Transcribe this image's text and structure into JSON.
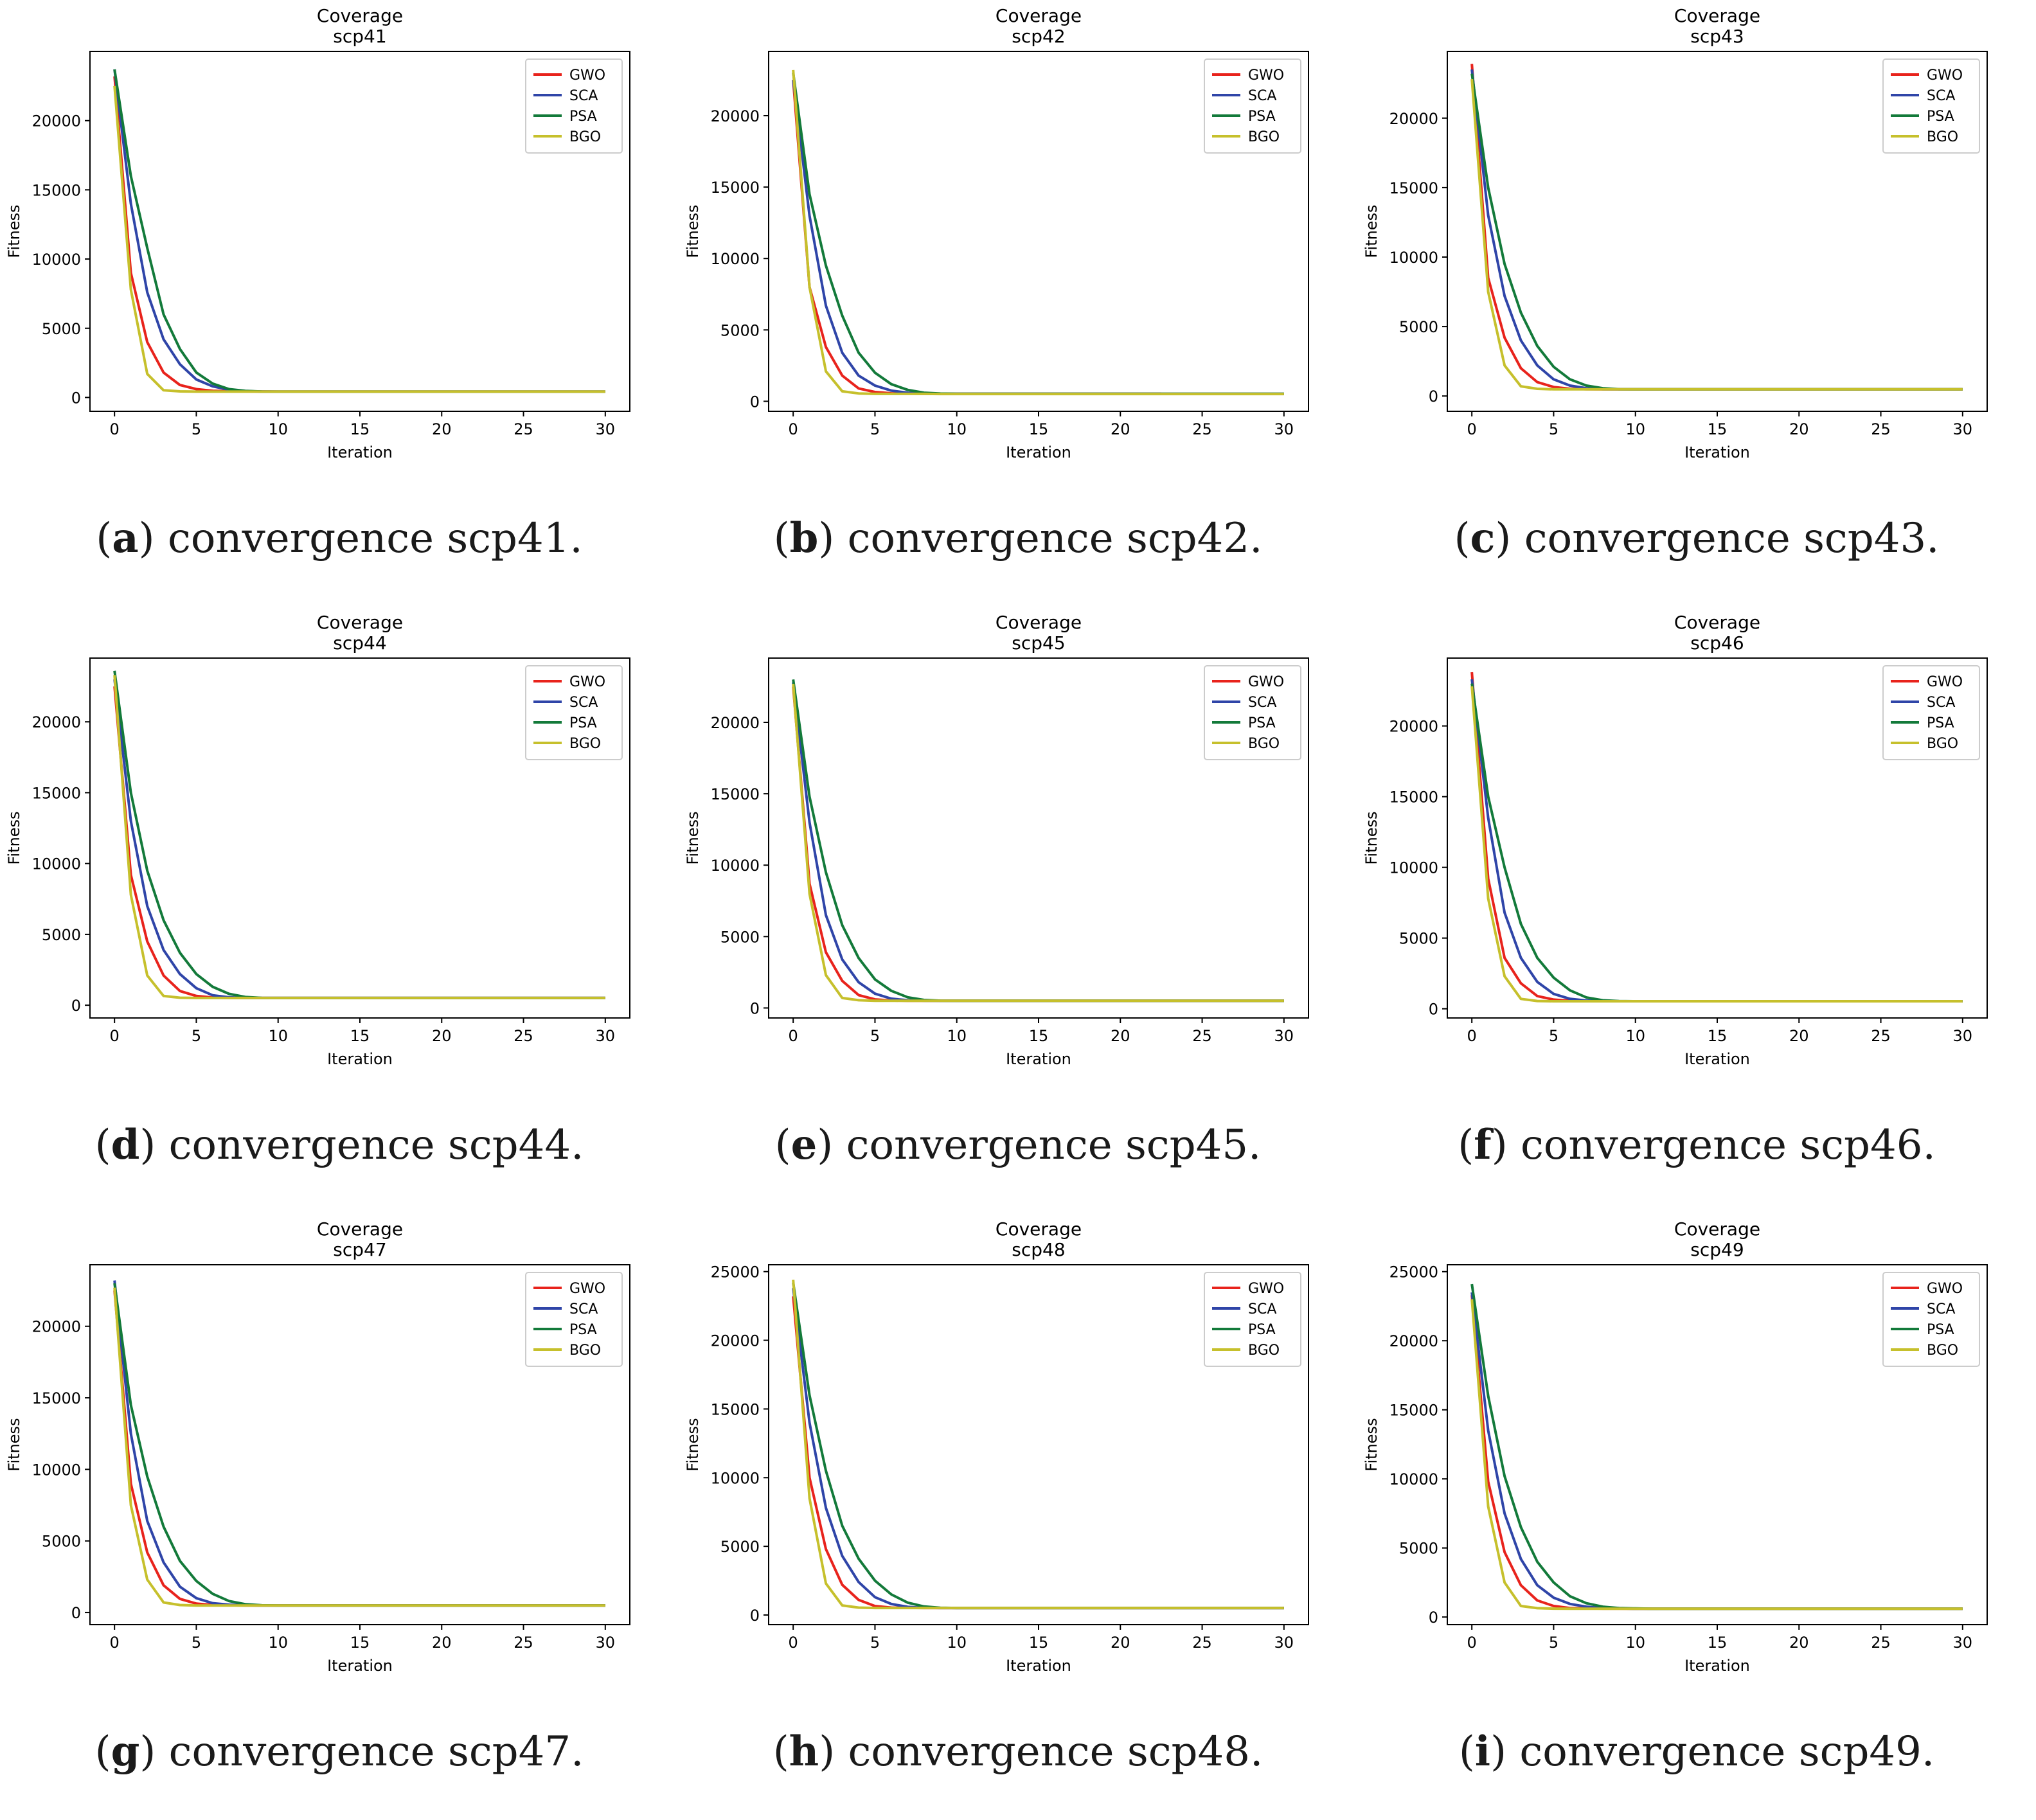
{
  "colors": {
    "GWO": "#e8231c",
    "SCA": "#2f45a8",
    "PSA": "#137a3a",
    "BGO": "#c6c02c"
  },
  "legend_labels": [
    "GWO",
    "SCA",
    "PSA",
    "BGO"
  ],
  "panels": [
    {
      "id": "a",
      "caption_letter": "a",
      "caption_text": "convergence scp41.",
      "chart_data": {
        "type": "line",
        "title": "Coverage",
        "subtitle": "scp41",
        "xlabel": "Iteration",
        "ylabel": "Fitness",
        "xlim": [
          -1.5,
          31.5
        ],
        "ylim": [
          -1000,
          25000
        ],
        "xticks": [
          0,
          5,
          10,
          15,
          20,
          25,
          30
        ],
        "yticks": [
          0,
          5000,
          10000,
          15000,
          20000
        ],
        "legend_position": "top-right",
        "series": [
          {
            "name": "GWO",
            "x_end": 30,
            "values": [
              23200,
              9000,
              4000,
              1800,
              900,
              600,
              480,
              450,
              440,
              430,
              420,
              420
            ]
          },
          {
            "name": "SCA",
            "x_end": 30,
            "values": [
              23700,
              14000,
              7600,
              4200,
              2400,
              1300,
              800,
              560,
              460,
              430,
              420,
              420
            ]
          },
          {
            "name": "PSA",
            "x_end": 30,
            "values": [
              23700,
              16000,
              10800,
              6000,
              3500,
              1800,
              1000,
              600,
              470,
              430,
              420,
              420
            ]
          },
          {
            "name": "BGO",
            "x_end": 30,
            "values": [
              22500,
              7800,
              1700,
              520,
              440,
              420,
              420,
              420,
              420,
              420,
              420,
              420
            ]
          }
        ]
      }
    },
    {
      "id": "b",
      "caption_letter": "b",
      "caption_text": "convergence scp42.",
      "chart_data": {
        "type": "line",
        "title": "Coverage",
        "subtitle": "scp42",
        "xlabel": "Iteration",
        "ylabel": "Fitness",
        "xlim": [
          -1.5,
          31.5
        ],
        "ylim": [
          -700,
          24500
        ],
        "xticks": [
          0,
          5,
          10,
          15,
          20,
          25,
          30
        ],
        "yticks": [
          0,
          5000,
          10000,
          15000,
          20000
        ],
        "legend_position": "top-right",
        "series": [
          {
            "name": "GWO",
            "x_end": 22.5,
            "values": [
              22500,
              8000,
              3800,
              1800,
              900,
              650,
              560,
              540,
              530,
              530,
              530,
              530
            ]
          },
          {
            "name": "SCA",
            "x_end": 30,
            "values": [
              22500,
              13000,
              6700,
              3400,
              1800,
              1100,
              750,
              600,
              540,
              530,
              530,
              530
            ]
          },
          {
            "name": "PSA",
            "x_end": 30,
            "values": [
              23000,
              14500,
              9500,
              6000,
              3400,
              2000,
              1200,
              800,
              600,
              540,
              530,
              530
            ]
          },
          {
            "name": "BGO",
            "x_end": 30,
            "values": [
              23200,
              8000,
              2100,
              700,
              550,
              520,
              520,
              520,
              520,
              510,
              510,
              510
            ]
          }
        ]
      }
    },
    {
      "id": "c",
      "caption_letter": "c",
      "caption_text": "convergence scp43.",
      "chart_data": {
        "type": "line",
        "title": "Coverage",
        "subtitle": "scp43",
        "xlabel": "Iteration",
        "ylabel": "Fitness",
        "xlim": [
          -1.5,
          31.5
        ],
        "ylim": [
          -1100,
          24800
        ],
        "xticks": [
          0,
          5,
          10,
          15,
          20,
          25,
          30
        ],
        "yticks": [
          0,
          5000,
          10000,
          15000,
          20000
        ],
        "legend_position": "top-right",
        "series": [
          {
            "name": "GWO",
            "x_end": 30,
            "values": [
              23900,
              8500,
              4200,
              2000,
              1000,
              650,
              520,
              490,
              480,
              480,
              480,
              480
            ]
          },
          {
            "name": "SCA",
            "x_end": 30,
            "values": [
              23500,
              13000,
              7200,
              4000,
              2200,
              1200,
              750,
              560,
              490,
              480,
              480,
              480
            ]
          },
          {
            "name": "PSA",
            "x_end": 30,
            "values": [
              23200,
              15000,
              9500,
              6000,
              3600,
              2100,
              1200,
              750,
              560,
              490,
              480,
              480
            ]
          },
          {
            "name": "BGO",
            "x_end": 30,
            "values": [
              22800,
              7500,
              2200,
              700,
              520,
              480,
              480,
              480,
              480,
              480,
              480,
              480
            ]
          }
        ]
      }
    },
    {
      "id": "d",
      "caption_letter": "d",
      "caption_text": "convergence scp44.",
      "chart_data": {
        "type": "line",
        "title": "Coverage",
        "subtitle": "scp44",
        "xlabel": "Iteration",
        "ylabel": "Fitness",
        "xlim": [
          -1.5,
          31.5
        ],
        "ylim": [
          -900,
          24500
        ],
        "xticks": [
          0,
          5,
          10,
          15,
          20,
          25,
          30
        ],
        "yticks": [
          0,
          5000,
          10000,
          15000,
          20000
        ],
        "legend_position": "top-right",
        "series": [
          {
            "name": "GWO",
            "x_end": 30,
            "values": [
              22500,
              9200,
              4500,
              2100,
              1000,
              650,
              540,
              520,
              510,
              510,
              510,
              510
            ]
          },
          {
            "name": "SCA",
            "x_end": 30,
            "values": [
              23000,
              13000,
              7000,
              3900,
              2200,
              1200,
              700,
              560,
              520,
              510,
              510,
              510
            ]
          },
          {
            "name": "PSA",
            "x_end": 30,
            "values": [
              23600,
              15000,
              9500,
              6000,
              3700,
              2200,
              1300,
              800,
              580,
              520,
              510,
              510
            ]
          },
          {
            "name": "BGO",
            "x_end": 30,
            "values": [
              23300,
              7800,
              2100,
              650,
              530,
              510,
              510,
              510,
              510,
              510,
              510,
              510
            ]
          }
        ]
      }
    },
    {
      "id": "e",
      "caption_letter": "e",
      "caption_text": "convergence scp45.",
      "chart_data": {
        "type": "line",
        "title": "Coverage",
        "subtitle": "scp45",
        "xlabel": "Iteration",
        "ylabel": "Fitness",
        "xlim": [
          -1.5,
          31.5
        ],
        "ylim": [
          -700,
          24500
        ],
        "xticks": [
          0,
          5,
          10,
          15,
          20,
          25,
          30
        ],
        "yticks": [
          0,
          5000,
          10000,
          15000,
          20000
        ],
        "legend_position": "top-right",
        "series": [
          {
            "name": "GWO",
            "x_end": 30,
            "values": [
              22500,
              8700,
              3900,
              1900,
              900,
              600,
              520,
              500,
              500,
              500,
              500,
              500
            ]
          },
          {
            "name": "SCA",
            "x_end": 30,
            "values": [
              22800,
              13000,
              6500,
              3400,
              1800,
              1000,
              650,
              540,
              510,
              500,
              500,
              500
            ]
          },
          {
            "name": "PSA",
            "x_end": 30,
            "values": [
              23000,
              14800,
              9500,
              5800,
              3500,
              2000,
              1200,
              750,
              560,
              510,
              500,
              500
            ]
          },
          {
            "name": "BGO",
            "x_end": 30,
            "values": [
              22700,
              8000,
              2300,
              700,
              540,
              500,
              500,
              500,
              500,
              500,
              500,
              500
            ]
          }
        ]
      }
    },
    {
      "id": "f",
      "caption_letter": "f",
      "caption_text": "convergence scp46.",
      "chart_data": {
        "type": "line",
        "title": "Coverage",
        "subtitle": "scp46",
        "xlabel": "Iteration",
        "ylabel": "Fitness",
        "xlim": [
          -1.5,
          31.5
        ],
        "ylim": [
          -650,
          24800
        ],
        "xticks": [
          0,
          5,
          10,
          15,
          20,
          25,
          30
        ],
        "yticks": [
          0,
          5000,
          10000,
          15000,
          20000
        ],
        "legend_position": "top-right",
        "series": [
          {
            "name": "GWO",
            "x_end": 30,
            "values": [
              23800,
              9200,
              3600,
              1800,
              900,
              650,
              560,
              540,
              530,
              530,
              530,
              530
            ]
          },
          {
            "name": "SCA",
            "x_end": 30,
            "values": [
              23300,
              13500,
              6800,
              3600,
              1900,
              1050,
              700,
              580,
              540,
              530,
              530,
              530
            ]
          },
          {
            "name": "PSA",
            "x_end": 30,
            "values": [
              23000,
              15000,
              10000,
              6000,
              3600,
              2200,
              1300,
              800,
              600,
              540,
              530,
              530
            ]
          },
          {
            "name": "BGO",
            "x_end": 30,
            "values": [
              22800,
              7800,
              2300,
              700,
              550,
              530,
              530,
              530,
              530,
              530,
              530,
              530
            ]
          }
        ]
      }
    },
    {
      "id": "g",
      "caption_letter": "g",
      "caption_text": "convergence scp47.",
      "chart_data": {
        "type": "line",
        "title": "Coverage",
        "subtitle": "scp47",
        "xlabel": "Iteration",
        "ylabel": "Fitness",
        "xlim": [
          -1.5,
          31.5
        ],
        "ylim": [
          -850,
          24300
        ],
        "xticks": [
          0,
          5,
          10,
          15,
          20,
          25,
          30
        ],
        "yticks": [
          0,
          5000,
          10000,
          15000,
          20000
        ],
        "legend_position": "top-right",
        "series": [
          {
            "name": "GWO",
            "x_end": 30,
            "values": [
              22500,
              9000,
              4200,
              1900,
              950,
              620,
              520,
              500,
              490,
              490,
              490,
              490
            ]
          },
          {
            "name": "SCA",
            "x_end": 30,
            "values": [
              23200,
              12500,
              6400,
              3500,
              1800,
              1000,
              650,
              540,
              500,
              490,
              490,
              490
            ]
          },
          {
            "name": "PSA",
            "x_end": 30,
            "values": [
              23000,
              14500,
              9500,
              6000,
              3600,
              2200,
              1300,
              800,
              580,
              500,
              490,
              490
            ]
          },
          {
            "name": "BGO",
            "x_end": 30,
            "values": [
              22700,
              7500,
              2300,
              700,
              520,
              490,
              490,
              490,
              490,
              490,
              490,
              490
            ]
          }
        ]
      }
    },
    {
      "id": "h",
      "caption_letter": "h",
      "caption_text": "convergence scp48.",
      "chart_data": {
        "type": "line",
        "title": "Coverage",
        "subtitle": "scp48",
        "xlabel": "Iteration",
        "ylabel": "Fitness",
        "xlim": [
          -1.5,
          31.5
        ],
        "ylim": [
          -700,
          25500
        ],
        "xticks": [
          0,
          5,
          10,
          15,
          20,
          25,
          30
        ],
        "yticks": [
          0,
          5000,
          10000,
          15000,
          20000,
          25000
        ],
        "legend_position": "top-right",
        "series": [
          {
            "name": "GWO",
            "x_end": 30,
            "values": [
              23200,
              10000,
              4800,
              2200,
              1100,
              650,
              540,
              520,
              510,
              510,
              510,
              510
            ]
          },
          {
            "name": "SCA",
            "x_end": 30,
            "values": [
              23800,
              14000,
              7800,
              4300,
              2400,
              1300,
              800,
              590,
              530,
              510,
              510,
              510
            ]
          },
          {
            "name": "PSA",
            "x_end": 30,
            "values": [
              24200,
              16000,
              10500,
              6500,
              4100,
              2500,
              1500,
              900,
              620,
              530,
              510,
              510
            ]
          },
          {
            "name": "BGO",
            "x_end": 30,
            "values": [
              24400,
              8500,
              2300,
              700,
              540,
              510,
              510,
              510,
              510,
              510,
              510,
              510
            ]
          }
        ]
      }
    },
    {
      "id": "i",
      "caption_letter": "i",
      "caption_text": "convergence scp49.",
      "chart_data": {
        "type": "line",
        "title": "Coverage",
        "subtitle": "scp49",
        "xlabel": "Iteration",
        "ylabel": "Fitness",
        "xlim": [
          -1.5,
          31.5
        ],
        "ylim": [
          -550,
          25500
        ],
        "xticks": [
          0,
          5,
          10,
          15,
          20,
          25,
          30
        ],
        "yticks": [
          0,
          5000,
          10000,
          15000,
          20000,
          25000
        ],
        "legend_position": "top-right",
        "series": [
          {
            "name": "GWO",
            "x_end": 30,
            "values": [
              23300,
              9800,
              4700,
              2300,
              1200,
              800,
              650,
              620,
              610,
              610,
              600,
              600
            ]
          },
          {
            "name": "SCA",
            "x_end": 30,
            "values": [
              23500,
              13500,
              7500,
              4200,
              2300,
              1400,
              950,
              750,
              650,
              620,
              600,
              600
            ]
          },
          {
            "name": "PSA",
            "x_end": 30,
            "values": [
              24100,
              16000,
              10200,
              6500,
              4000,
              2500,
              1500,
              1000,
              750,
              650,
              620,
              600
            ]
          },
          {
            "name": "BGO",
            "x_end": 30,
            "values": [
              23000,
              8000,
              2500,
              800,
              640,
              610,
              600,
              600,
              600,
              600,
              600,
              600
            ]
          }
        ]
      }
    }
  ]
}
